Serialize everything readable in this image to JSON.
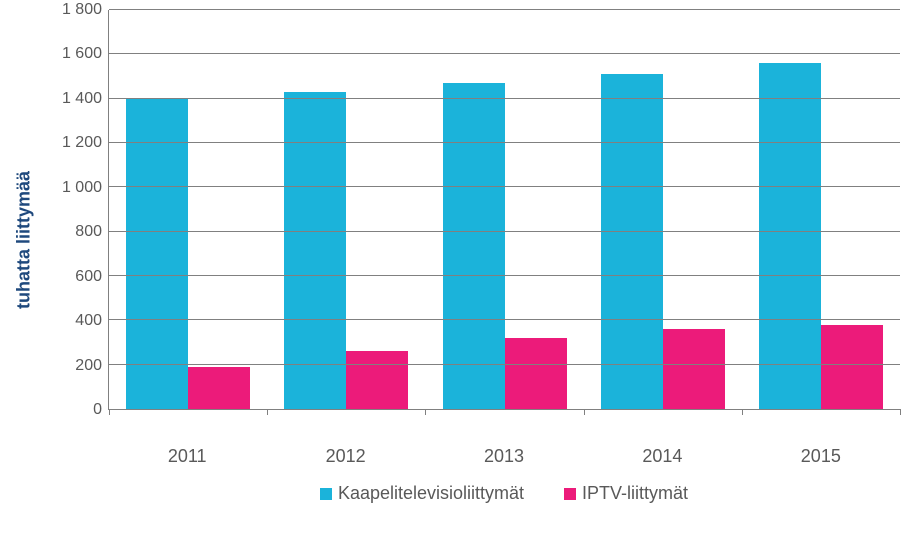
{
  "chart": {
    "type": "bar",
    "ylabel": "tuhatta liittymää",
    "ylabel_color": "#1f497d",
    "ylabel_fontsize": 18,
    "label_fontsize": 18,
    "tick_color": "#595959",
    "ylim": [
      0,
      1800
    ],
    "ytick_step": 200,
    "yticks": [
      "0",
      "200",
      "400",
      "600",
      "800",
      "1 000",
      "1 200",
      "1 400",
      "1 600",
      "1 800"
    ],
    "categories": [
      "2011",
      "2012",
      "2013",
      "2014",
      "2015"
    ],
    "series": [
      {
        "name": "Kaapelitelevisioliittymät",
        "color": "#1bb3da",
        "values": [
          1400,
          1430,
          1470,
          1510,
          1560
        ]
      },
      {
        "name": "IPTV-liittymät",
        "color": "#ec1b7a",
        "values": [
          190,
          260,
          320,
          360,
          380
        ]
      }
    ],
    "background_color": "#ffffff",
    "grid_color": "#808080",
    "axis_color": "#808080",
    "bar_group_gap_ratio": 0.2,
    "bar_width_pct": 40
  }
}
